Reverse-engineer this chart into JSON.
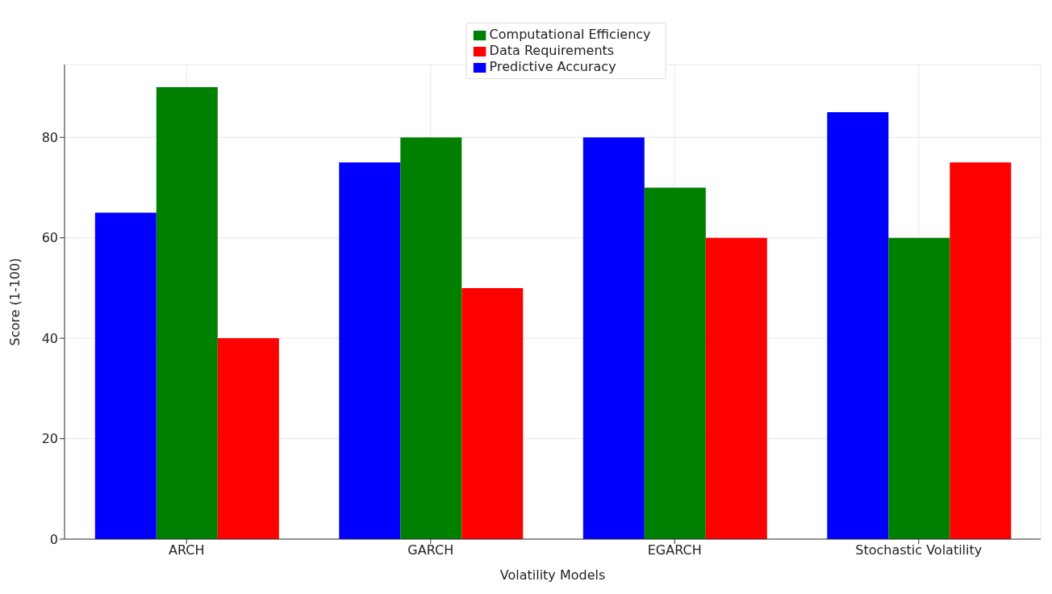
{
  "chart_data": {
    "type": "bar",
    "xlabel": "Volatility Models",
    "ylabel": "Score (1-100)",
    "categories": [
      "ARCH",
      "GARCH",
      "EGARCH",
      "Stochastic Volatility"
    ],
    "series": [
      {
        "name": "Predictive Accuracy",
        "color": "#0000ff",
        "values": [
          65,
          75,
          80,
          85
        ]
      },
      {
        "name": "Computational Efficiency",
        "color": "#008000",
        "values": [
          90,
          80,
          70,
          60
        ]
      },
      {
        "name": "Data Requirements",
        "color": "#ff0000",
        "values": [
          40,
          50,
          60,
          75
        ]
      }
    ],
    "ylim": [
      0,
      94.5
    ],
    "yticks": [
      0,
      20,
      40,
      60,
      80
    ],
    "grid": true,
    "legend": "top"
  }
}
